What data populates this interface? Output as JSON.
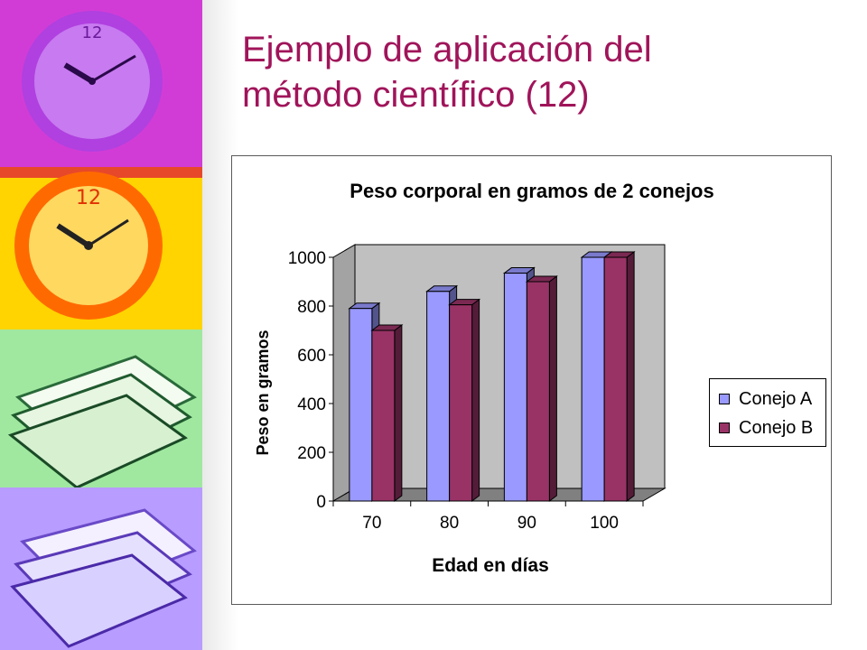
{
  "slide": {
    "title_line1": "Ejemplo de aplicación del",
    "title_line2": "método científico (12)",
    "side_images": [
      "clock-image-purple",
      "clock-image-orange",
      "books-image-green",
      "books-image-violet"
    ]
  },
  "colors": {
    "title": "#a0145a",
    "conejo_a": "#9999ff",
    "conejo_b": "#993366",
    "wall": "#c0c0c0",
    "floor": "#808080"
  },
  "chart_data": {
    "type": "bar",
    "title": "Peso corporal en gramos de 2 conejos",
    "xlabel": "Edad en días",
    "ylabel": "Peso en gramos",
    "categories": [
      "70",
      "80",
      "90",
      "100"
    ],
    "series": [
      {
        "name": "Conejo A",
        "values": [
          790,
          860,
          935,
          1000
        ]
      },
      {
        "name": "Conejo B",
        "values": [
          700,
          805,
          900,
          1000
        ]
      }
    ],
    "ylim": [
      0,
      1000
    ],
    "yticks": [
      "0",
      "200",
      "400",
      "600",
      "800",
      "1000"
    ],
    "legend": "right",
    "grid": false,
    "style": "3d-clustered-column"
  }
}
